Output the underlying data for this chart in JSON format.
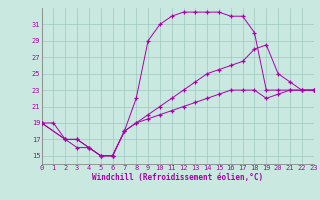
{
  "xlabel": "Windchill (Refroidissement éolien,°C)",
  "bg_color": "#c8e8e0",
  "grid_color": "#a0c8c0",
  "line_color": "#aa00aa",
  "xlim": [
    0,
    23
  ],
  "ylim": [
    14,
    33
  ],
  "yticks": [
    15,
    17,
    19,
    21,
    23,
    25,
    27,
    29,
    31
  ],
  "xticks": [
    0,
    1,
    2,
    3,
    4,
    5,
    6,
    7,
    8,
    9,
    10,
    11,
    12,
    13,
    14,
    15,
    16,
    17,
    18,
    19,
    20,
    21,
    22,
    23
  ],
  "series1_x": [
    0,
    1,
    2,
    3,
    4,
    5,
    6,
    7,
    8,
    9,
    10,
    11,
    12,
    13,
    14,
    15,
    16,
    17,
    18,
    19,
    20,
    21,
    22,
    23
  ],
  "series1_y": [
    19,
    19,
    17,
    16,
    16,
    15,
    15,
    18,
    22,
    29,
    31,
    32,
    32.5,
    32.5,
    32.5,
    32.5,
    32,
    32,
    30,
    23,
    23,
    23,
    23,
    23
  ],
  "series2_x": [
    0,
    2,
    3,
    4,
    5,
    6,
    7,
    8,
    9,
    10,
    11,
    12,
    13,
    14,
    15,
    16,
    17,
    18,
    19,
    20,
    21,
    22,
    23
  ],
  "series2_y": [
    19,
    17,
    17,
    16,
    15,
    15,
    18,
    19,
    20,
    21,
    22,
    23,
    24,
    25,
    25.5,
    26,
    26.5,
    28,
    28.5,
    25,
    24,
    23,
    23
  ],
  "series3_x": [
    0,
    2,
    3,
    4,
    5,
    6,
    7,
    8,
    9,
    10,
    11,
    12,
    13,
    14,
    15,
    16,
    17,
    18,
    19,
    20,
    21,
    22,
    23
  ],
  "series3_y": [
    19,
    17,
    17,
    16,
    15,
    15,
    18,
    19,
    19.5,
    20,
    20.5,
    21,
    21.5,
    22,
    22.5,
    23,
    23,
    23,
    22,
    22.5,
    23,
    23,
    23
  ]
}
